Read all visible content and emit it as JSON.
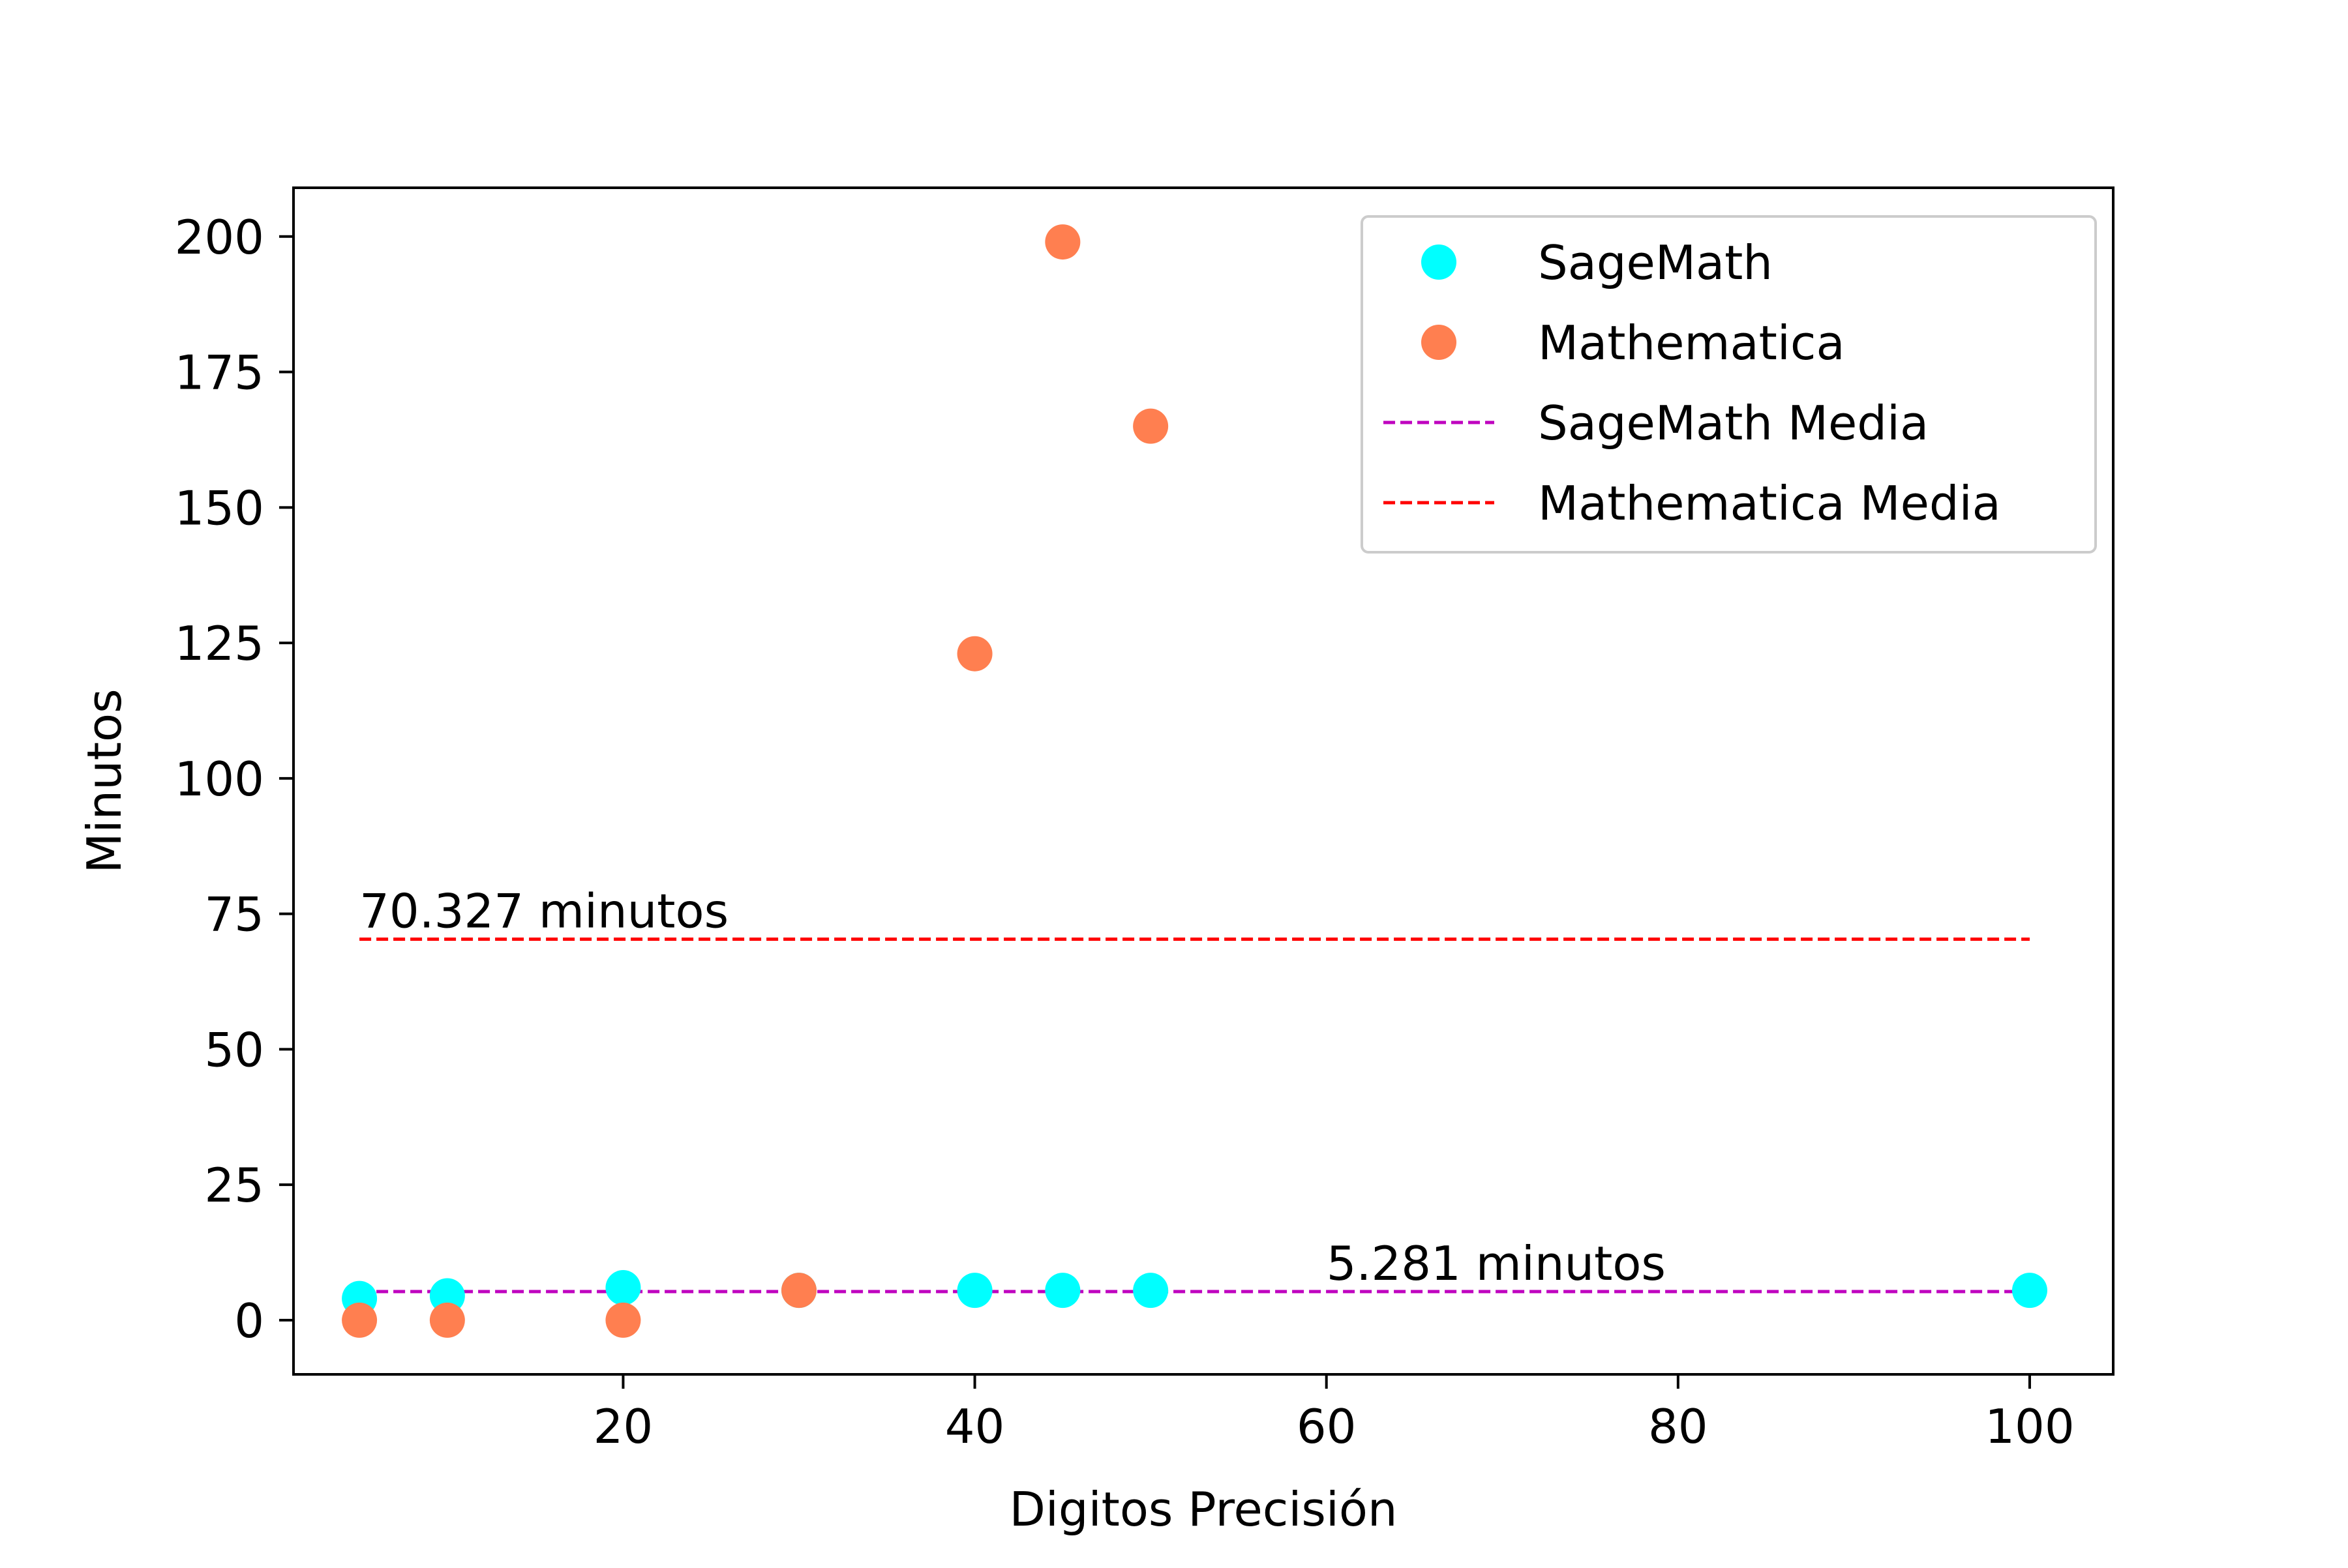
{
  "chart_data": {
    "type": "scatter",
    "title": "",
    "xlabel": "Digitos Precisión",
    "ylabel": "Minutos",
    "xlim": [
      1.25,
      104.75
    ],
    "ylim": [
      -10,
      209
    ],
    "xticks": [
      20,
      40,
      60,
      80,
      100
    ],
    "yticks": [
      0,
      25,
      50,
      75,
      100,
      125,
      150,
      175,
      200
    ],
    "grid": false,
    "legend_position": "top-right",
    "series": [
      {
        "name": "SageMath",
        "kind": "scatter",
        "color": "#00ffff",
        "points": [
          {
            "x": 5,
            "y": 4
          },
          {
            "x": 10,
            "y": 4.5
          },
          {
            "x": 20,
            "y": 6
          },
          {
            "x": 30,
            "y": 5.5
          },
          {
            "x": 40,
            "y": 5.5
          },
          {
            "x": 45,
            "y": 5.5
          },
          {
            "x": 50,
            "y": 5.5
          },
          {
            "x": 100,
            "y": 5.5
          }
        ]
      },
      {
        "name": "Mathematica",
        "kind": "scatter",
        "color": "#ff7f50",
        "points": [
          {
            "x": 5,
            "y": 0
          },
          {
            "x": 10,
            "y": 0
          },
          {
            "x": 20,
            "y": 0
          },
          {
            "x": 30,
            "y": 5.5
          },
          {
            "x": 40,
            "y": 123
          },
          {
            "x": 45,
            "y": 199
          },
          {
            "x": 50,
            "y": 165
          }
        ]
      },
      {
        "name": "SageMath Media",
        "kind": "hline",
        "color": "#bf00bf",
        "y": 5.281,
        "x_range": [
          5,
          100
        ]
      },
      {
        "name": "Mathematica Media",
        "kind": "hline",
        "color": "#ff0000",
        "y": 70.327,
        "x_range": [
          5,
          100
        ]
      }
    ],
    "annotations": [
      {
        "text": "70.327 minutos",
        "x": 5,
        "y": 70.327
      },
      {
        "text": "5.281 minutos",
        "x": 60,
        "y": 5.281
      }
    ]
  }
}
